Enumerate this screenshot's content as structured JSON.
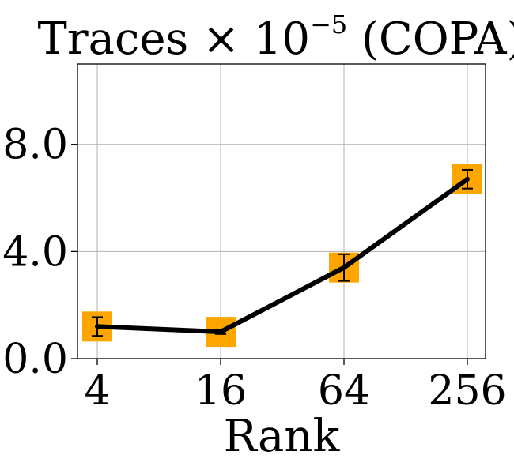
{
  "chart_data": {
    "type": "line",
    "title_main": "Traces × 10",
    "title_exp": "−5",
    "title_suffix": " (COPA)",
    "xlabel": "Rank",
    "ylabel": "",
    "categories": [
      "4",
      "16",
      "64",
      "256"
    ],
    "x": [
      4,
      16,
      64,
      256
    ],
    "x_scale": "log2",
    "ylim": [
      0,
      11
    ],
    "yticks": [
      0,
      4,
      8
    ],
    "ytick_labels": [
      "0.0",
      "4.0",
      "8.0"
    ],
    "grid": true,
    "series": [
      {
        "values": [
          1.2,
          1.0,
          3.4,
          6.7
        ],
        "error": [
          0.35,
          0.08,
          0.5,
          0.35
        ],
        "line_color": "#000000",
        "marker_color": "#FFA500",
        "marker": "square"
      }
    ]
  }
}
